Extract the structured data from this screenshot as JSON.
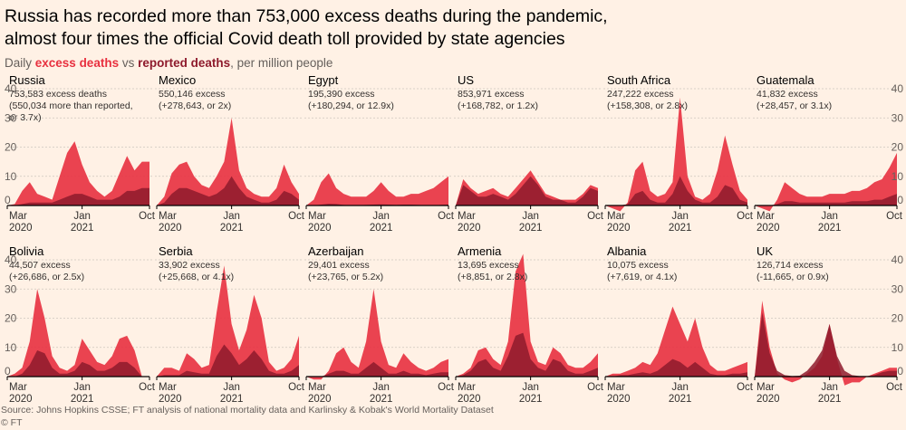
{
  "title_line1": "Russia has recorded more than 753,000 excess deaths during the pandemic,",
  "title_line2": "almost four times the official Covid death toll provided by state agencies",
  "subtitle": {
    "prefix": "Daily ",
    "excess": "excess deaths",
    "vs": " vs ",
    "reported": "reported deaths",
    "suffix": ", per million people"
  },
  "source": "Source: Johns Hopkins CSSE; FT analysis of national mortality data and Karlinsky & Kobak's World Mortality Dataset",
  "copyright": "© FT",
  "colors": {
    "excess": "#E8303F",
    "reported": "#8E1A2C",
    "background": "#FFF1E5",
    "grid": "#CEC6BE",
    "text": "#33302E"
  },
  "chart_data": {
    "type": "area",
    "yticks": [
      0,
      10,
      20,
      30,
      40
    ],
    "ylim": [
      0,
      40
    ],
    "x_months": [
      "2020-03",
      "2020-04",
      "2020-05",
      "2020-06",
      "2020-07",
      "2020-08",
      "2020-09",
      "2020-10",
      "2020-11",
      "2020-12",
      "2021-01",
      "2021-02",
      "2021-03",
      "2021-04",
      "2021-05",
      "2021-06",
      "2021-07",
      "2021-08",
      "2021-09",
      "2021-10"
    ],
    "xtick_labels": [
      {
        "line1": "Mar",
        "line2": "2020"
      },
      {
        "line1": "Jan",
        "line2": "2021"
      },
      {
        "line1": "Oct",
        "line2": ""
      }
    ],
    "series_names": [
      "excess deaths",
      "reported deaths"
    ],
    "panels": [
      {
        "name": "Russia",
        "line1": "753,583 excess deaths",
        "line2": "(550,034 more than reported,",
        "line3": "or 3.7x)",
        "excess": [
          0,
          0.5,
          5,
          8,
          4,
          3,
          2,
          10,
          18,
          22,
          14,
          8,
          5,
          3,
          5,
          11,
          17,
          12,
          15,
          15
        ],
        "reported": [
          0,
          0,
          0.5,
          1,
          1,
          1,
          1,
          2,
          3,
          4,
          4,
          3,
          2,
          2,
          2,
          3,
          5,
          5,
          6,
          6
        ]
      },
      {
        "name": "Mexico",
        "line1": "550,146 excess",
        "line2": "(+278,643, or 2x)",
        "line3": "",
        "excess": [
          0,
          3,
          11,
          14,
          15,
          10,
          7,
          6,
          10,
          15,
          30,
          12,
          6,
          4,
          3,
          3,
          6,
          14,
          8,
          4
        ],
        "reported": [
          0,
          1,
          4,
          6,
          6,
          5,
          4,
          3,
          4,
          6,
          10,
          6,
          3,
          2,
          1,
          1,
          2,
          5,
          4,
          2
        ]
      },
      {
        "name": "Egypt",
        "line1": "195,390 excess",
        "line2": "(+180,294, or 12.9x)",
        "line3": "",
        "excess": [
          0,
          2,
          8,
          11,
          6,
          4,
          3,
          3,
          3,
          5,
          8,
          5,
          3,
          3,
          4,
          4,
          5,
          6,
          8,
          10
        ],
        "reported": [
          0,
          0,
          0.3,
          0.6,
          0.5,
          0.2,
          0.1,
          0.1,
          0.2,
          0.3,
          0.4,
          0.3,
          0.2,
          0.3,
          0.3,
          0.2,
          0.1,
          0.1,
          0.2,
          0.3
        ]
      },
      {
        "name": "US",
        "line1": "853,971 excess",
        "line2": "(+168,782, or 1.2x)",
        "line3": "",
        "excess": [
          0,
          9,
          6,
          4,
          5,
          6,
          4,
          3,
          6,
          9,
          12,
          8,
          4,
          3,
          2,
          2,
          2,
          4,
          7,
          6
        ],
        "reported": [
          0,
          7,
          5,
          3,
          3,
          4,
          3,
          2,
          4,
          7,
          10,
          7,
          3,
          2,
          2,
          1,
          1,
          3,
          6,
          5
        ]
      },
      {
        "name": "South Africa",
        "line1": "247,222 excess",
        "line2": "(+158,308, or 2.8x)",
        "line3": "",
        "excess": [
          0,
          -1,
          -2,
          1,
          12,
          15,
          5,
          3,
          4,
          8,
          37,
          10,
          3,
          2,
          4,
          12,
          24,
          14,
          5,
          2
        ],
        "reported": [
          0,
          0,
          0,
          0.5,
          4,
          5,
          2,
          1,
          1,
          4,
          10,
          5,
          2,
          1,
          1,
          3,
          7,
          6,
          2,
          1
        ]
      },
      {
        "name": "Guatemala",
        "line1": "41,832 excess",
        "line2": "(+28,457, or 3.1x)",
        "line3": "",
        "excess": [
          0,
          -1,
          -2,
          2,
          8,
          6,
          4,
          3,
          3,
          3,
          4,
          4,
          4,
          5,
          5,
          6,
          8,
          9,
          13,
          18
        ],
        "reported": [
          0,
          0,
          0,
          0.5,
          1.5,
          1.5,
          1,
          1,
          1,
          1,
          1,
          1,
          1,
          1.5,
          1.5,
          1.5,
          2,
          2,
          3,
          4
        ]
      },
      {
        "name": "Bolivia",
        "line1": "44,507 excess",
        "line2": "(+26,686, or 2.5x)",
        "line3": "",
        "excess": [
          0,
          1,
          3,
          12,
          30,
          20,
          7,
          3,
          2,
          4,
          13,
          9,
          5,
          4,
          7,
          13,
          14,
          9,
          0,
          0
        ],
        "reported": [
          0,
          0,
          1,
          4,
          9,
          8,
          3,
          1,
          1,
          2,
          5,
          4,
          2,
          2,
          3,
          5,
          5,
          3,
          0,
          0
        ]
      },
      {
        "name": "Serbia",
        "line1": "33,902 excess",
        "line2": "(+25,668, or 4.1x)",
        "line3": "",
        "excess": [
          0,
          3,
          3,
          2,
          8,
          6,
          3,
          4,
          22,
          38,
          18,
          9,
          16,
          28,
          20,
          5,
          2,
          3,
          6,
          14
        ],
        "reported": [
          0,
          0.5,
          0.5,
          0.5,
          2,
          1.5,
          1,
          1,
          7,
          11,
          8,
          4,
          6,
          9,
          6,
          2,
          1,
          1,
          2,
          4
        ]
      },
      {
        "name": "Azerbaijan",
        "line1": "29,401 excess",
        "line2": "(+23,765, or 5.2x)",
        "line3": "",
        "excess": [
          0,
          -1,
          -1,
          2,
          8,
          10,
          5,
          3,
          12,
          30,
          12,
          4,
          3,
          8,
          5,
          3,
          2,
          3,
          5,
          6
        ],
        "reported": [
          0,
          0,
          0,
          1,
          2,
          2,
          1,
          1,
          3,
          5,
          3,
          1,
          1,
          2,
          1,
          1,
          0.5,
          1,
          1.5,
          1.5
        ]
      },
      {
        "name": "Armenia",
        "line1": "13,695 excess",
        "line2": "(+8,851, or 2.8x)",
        "line3": "",
        "excess": [
          0,
          1,
          3,
          9,
          10,
          6,
          4,
          12,
          36,
          42,
          12,
          5,
          4,
          10,
          8,
          4,
          3,
          3,
          5,
          8
        ],
        "reported": [
          0,
          0.5,
          2,
          5,
          6,
          3,
          2,
          7,
          14,
          15,
          6,
          3,
          2,
          6,
          5,
          2,
          1,
          1,
          2,
          3
        ]
      },
      {
        "name": "Albania",
        "line1": "10,075 excess",
        "line2": "(+7,619, or 4.1x)",
        "line3": "",
        "excess": [
          0,
          1,
          1,
          2,
          3,
          5,
          4,
          8,
          16,
          24,
          18,
          12,
          20,
          10,
          4,
          2,
          2,
          3,
          4,
          5
        ],
        "reported": [
          0,
          0,
          0.5,
          0.5,
          1,
          1.5,
          1,
          2,
          4,
          6,
          5,
          3,
          5,
          3,
          1,
          0.5,
          0.5,
          1,
          1,
          1.5
        ]
      },
      {
        "name": "UK",
        "line1": "126,714 excess",
        "line2": "(-11,665, or 0.9x)",
        "line3": "",
        "excess": [
          0,
          26,
          10,
          1,
          -1,
          -2,
          -1,
          1,
          3,
          7,
          18,
          6,
          -3,
          -2,
          -2,
          0,
          1,
          2,
          3,
          3
        ],
        "reported": [
          0,
          22,
          8,
          2,
          0.5,
          0.2,
          0.3,
          2,
          5,
          9,
          18,
          7,
          2,
          0.5,
          0.2,
          0.2,
          0.5,
          1.5,
          2,
          2
        ]
      }
    ]
  }
}
